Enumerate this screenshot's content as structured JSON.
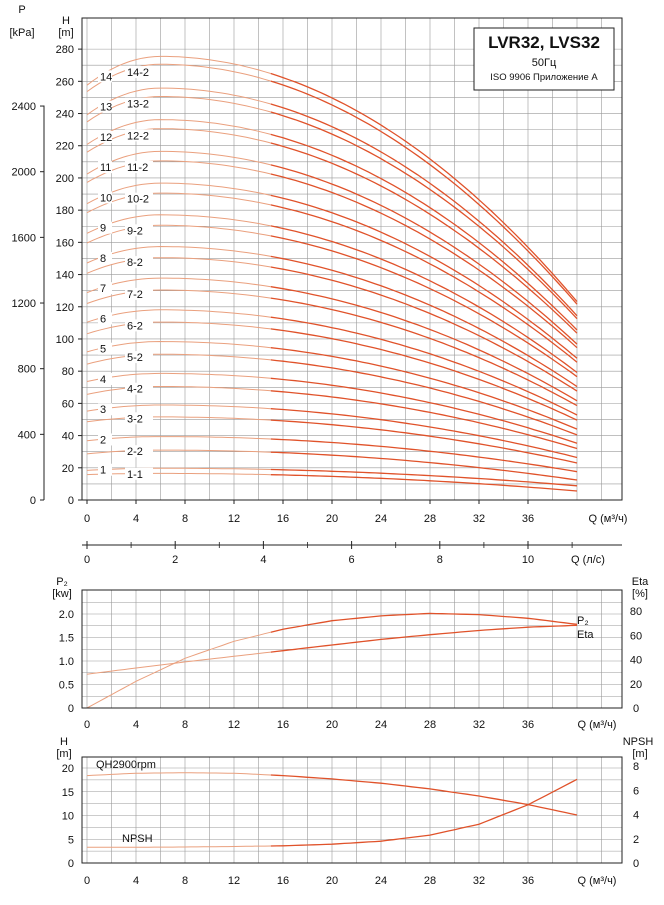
{
  "colors": {
    "curve": "#e0522a",
    "curve_light": "#eaa07e",
    "grid": "#9a9a9a",
    "axis": "#222222",
    "background": "#ffffff"
  },
  "title_box": {
    "title": "LVR32, LVS32",
    "freq": "50Гц",
    "standard": "ISO 9906 Приложение A"
  },
  "chart_data": [
    {
      "id": "head",
      "type": "line",
      "left_axis_label": [
        "P",
        "[kPa]"
      ],
      "left_axis_ticks": [
        "0",
        "400",
        "800",
        "1200",
        "1600",
        "2000",
        "2400"
      ],
      "left_axis_values": [
        0,
        400,
        800,
        1200,
        1600,
        2000,
        2400
      ],
      "ylabel": [
        "H",
        "[m]"
      ],
      "xlabel": "Q (м³/ч)",
      "xlim": [
        0,
        40
      ],
      "ylim": [
        0,
        280
      ],
      "x_ticks": [
        "0",
        "4",
        "8",
        "12",
        "16",
        "20",
        "24",
        "28",
        "32",
        "36"
      ],
      "y_ticks": [
        "0",
        "20",
        "40",
        "60",
        "80",
        "100",
        "120",
        "140",
        "160",
        "180",
        "200",
        "220",
        "240",
        "260",
        "280"
      ],
      "grid": true,
      "series": [
        {
          "name": "1-1",
          "h0": 15.8,
          "hmax": 16.5,
          "hend": 5.6
        },
        {
          "name": "1",
          "h0": 18.4,
          "hmax": 19.7,
          "hend": 8.8
        },
        {
          "name": "2-2",
          "h0": 28.6,
          "hmax": 31,
          "hend": 12.4
        },
        {
          "name": "2",
          "h0": 36.8,
          "hmax": 39.4,
          "hend": 17.6
        },
        {
          "name": "3-2",
          "h0": 48.6,
          "hmax": 51.6,
          "hend": 23
        },
        {
          "name": "3",
          "h0": 55.2,
          "hmax": 59,
          "hend": 26.4
        },
        {
          "name": "4-2",
          "h0": 65.6,
          "hmax": 70.5,
          "hend": 32
        },
        {
          "name": "4",
          "h0": 73.6,
          "hmax": 78.6,
          "hend": 35.2
        },
        {
          "name": "5-2",
          "h0": 84.4,
          "hmax": 90.5,
          "hend": 40.4
        },
        {
          "name": "5",
          "h0": 92,
          "hmax": 98.4,
          "hend": 44
        },
        {
          "name": "6-2",
          "h0": 103.2,
          "hmax": 110.5,
          "hend": 49.6
        },
        {
          "name": "6",
          "h0": 110.4,
          "hmax": 118.1,
          "hend": 52.8
        },
        {
          "name": "7-2",
          "h0": 122,
          "hmax": 130.4,
          "hend": 58.6
        },
        {
          "name": "7",
          "h0": 128.8,
          "hmax": 137.8,
          "hend": 61.6
        },
        {
          "name": "8-2",
          "h0": 140.8,
          "hmax": 150.5,
          "hend": 67.6
        },
        {
          "name": "8",
          "h0": 147.2,
          "hmax": 157.4,
          "hend": 70.4
        },
        {
          "name": "9-2",
          "h0": 159.6,
          "hmax": 170.6,
          "hend": 76.6
        },
        {
          "name": "9",
          "h0": 165.6,
          "hmax": 177.1,
          "hend": 79.2
        },
        {
          "name": "10-2",
          "h0": 178.4,
          "hmax": 190.6,
          "hend": 85.6
        },
        {
          "name": "10",
          "h0": 184,
          "hmax": 196.8,
          "hend": 88
        },
        {
          "name": "11-2",
          "h0": 197.2,
          "hmax": 210.6,
          "hend": 94.6
        },
        {
          "name": "11",
          "h0": 202.4,
          "hmax": 216.5,
          "hend": 96.8
        },
        {
          "name": "12-2",
          "h0": 216,
          "hmax": 230.6,
          "hend": 103.6
        },
        {
          "name": "12",
          "h0": 220.8,
          "hmax": 236.2,
          "hend": 105.6
        },
        {
          "name": "13-2",
          "h0": 234.8,
          "hmax": 250.6,
          "hend": 112.6
        },
        {
          "name": "13",
          "h0": 239.2,
          "hmax": 255.8,
          "hend": 114.4
        },
        {
          "name": "14-2",
          "h0": 253.6,
          "hmax": 270.6,
          "hend": 121.6
        },
        {
          "name": "14",
          "h0": 257.6,
          "hmax": 275.5,
          "hend": 123.2
        }
      ]
    },
    {
      "id": "flow_ls",
      "type": "axis",
      "xlabel": "Q (л/с)",
      "xlim": [
        0,
        12
      ],
      "x_ticks": [
        "0",
        "2",
        "4",
        "6",
        "8",
        "10"
      ]
    },
    {
      "id": "power",
      "type": "line",
      "ylabel": [
        "P₂",
        "[kw]"
      ],
      "right_label": [
        "Eta",
        "[%]"
      ],
      "xlabel": "Q (м³/ч)",
      "xlim": [
        0,
        40
      ],
      "ylim": [
        0,
        2.0
      ],
      "x_ticks": [
        "0",
        "4",
        "8",
        "12",
        "16",
        "20",
        "24",
        "28",
        "32",
        "36"
      ],
      "y_ticks": [
        "0",
        "0.5",
        "1.0",
        "1.5",
        "2.0"
      ],
      "right_ticks": [
        "0",
        "20",
        "40",
        "60",
        "80"
      ],
      "grid": true,
      "series": [
        {
          "name": "P₂",
          "unit": "kw",
          "x": [
            0,
            4,
            8,
            12,
            16,
            20,
            24,
            28,
            32,
            36,
            40
          ],
          "values": [
            0.72,
            0.85,
            0.98,
            1.1,
            1.22,
            1.34,
            1.46,
            1.56,
            1.65,
            1.72,
            1.76
          ]
        },
        {
          "name": "Eta",
          "unit": "%",
          "x": [
            0,
            4,
            8,
            12,
            16,
            20,
            24,
            28,
            32,
            36,
            40
          ],
          "values": [
            0,
            22,
            41,
            55,
            65,
            72,
            76,
            78,
            77,
            74,
            69
          ]
        }
      ]
    },
    {
      "id": "npsh",
      "type": "line",
      "ylabel": [
        "H",
        "[m]"
      ],
      "right_label": [
        "NPSH",
        "[m]"
      ],
      "xlabel": "Q (м³/ч)",
      "xlim": [
        0,
        40
      ],
      "ylim": [
        0,
        20
      ],
      "x_ticks": [
        "0",
        "4",
        "8",
        "12",
        "16",
        "20",
        "24",
        "28",
        "32",
        "36"
      ],
      "y_ticks": [
        "0",
        "5",
        "10",
        "15",
        "20"
      ],
      "right_ticks": [
        "0",
        "2",
        "4",
        "6",
        "8"
      ],
      "grid": true,
      "series": [
        {
          "name": "QH2900rpm",
          "unit": "m",
          "x": [
            0,
            4,
            8,
            12,
            16,
            20,
            24,
            28,
            32,
            36,
            40
          ],
          "values": [
            18.4,
            18.9,
            19.0,
            18.9,
            18.4,
            17.7,
            16.8,
            15.6,
            14.1,
            12.3,
            10.1
          ]
        },
        {
          "name": "NPSH",
          "unit": "m",
          "x": [
            0,
            4,
            8,
            12,
            16,
            20,
            24,
            28,
            32,
            36,
            40
          ],
          "values": [
            1.3,
            1.3,
            1.32,
            1.36,
            1.42,
            1.55,
            1.8,
            2.3,
            3.2,
            4.8,
            6.9
          ]
        }
      ]
    }
  ]
}
